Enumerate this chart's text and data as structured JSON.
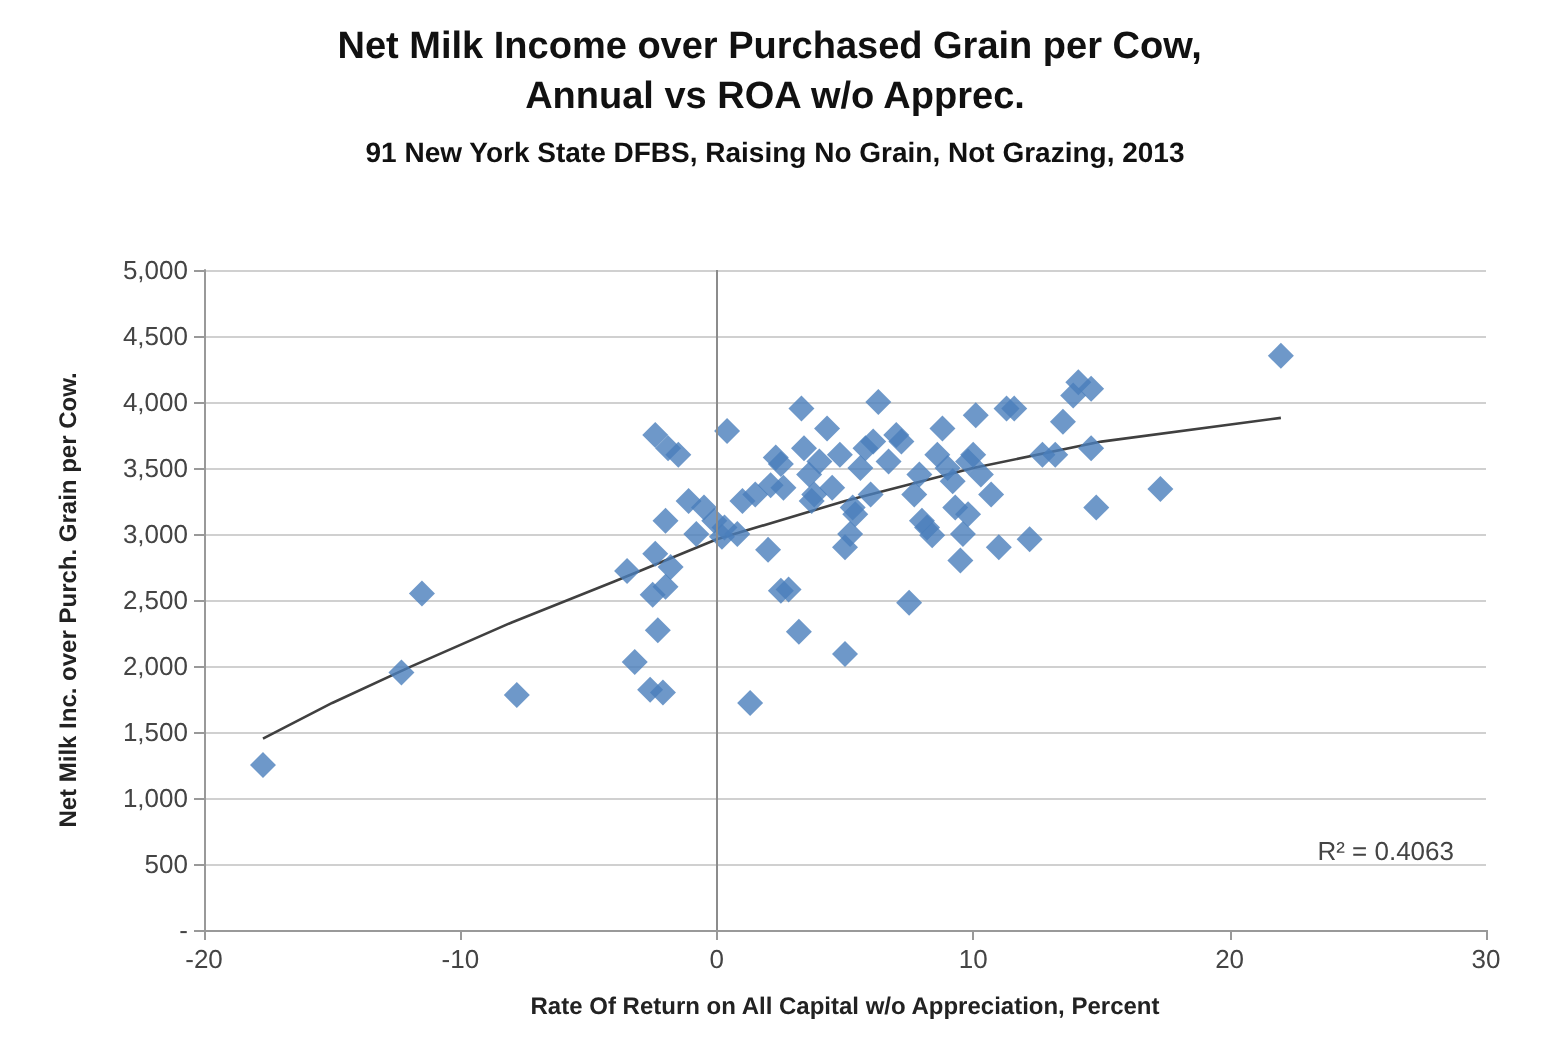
{
  "chart_data": {
    "type": "scatter",
    "title": "Net Milk Income over Purchased Grain per Cow, Annual vs ROA w/o Apprec.",
    "subtitle": "91 New York State DFBS, Raising No Grain, Not Grazing, 2013",
    "xlabel": "Rate Of Return on All Capital w/o Appreciation, Percent",
    "ylabel": "Net Milk Inc. over Purch. Grain per Cow.",
    "series": [
      {
        "type": "scatter",
        "color": "#4a7ebb",
        "marker": "diamond",
        "x": [
          -17.7,
          -12.3,
          -11.5,
          -7.8,
          -3.5,
          -3.2,
          -2.6,
          -2.1,
          -2.3,
          -2.5,
          -2.0,
          -2.4,
          -1.8,
          -2.0,
          -2.4,
          -1.9,
          -1.5,
          -1.1,
          -0.5,
          -0.1,
          0.2,
          0.3,
          0.4,
          0.8,
          1.3,
          1.5,
          2.0,
          2.1,
          2.5,
          2.3,
          2.5,
          2.8,
          3.2,
          3.3,
          3.4,
          3.6,
          3.8,
          4.0,
          4.3,
          4.5,
          4.8,
          5.0,
          5.0,
          5.2,
          5.4,
          5.6,
          5.8,
          6.0,
          6.3,
          7.2,
          7.5,
          7.7,
          7.9,
          8.0,
          8.2,
          8.4,
          8.6,
          8.8,
          9.0,
          9.2,
          9.3,
          9.5,
          9.6,
          9.8,
          10.0,
          10.1,
          10.3,
          10.7,
          11.0,
          11.3,
          11.6,
          12.2,
          12.7,
          13.2,
          13.5,
          13.9,
          14.1,
          14.6,
          14.6,
          14.8,
          17.3,
          22.0,
          7.0,
          6.7,
          9.8,
          2.6,
          1.0,
          -0.8,
          3.7,
          5.3,
          6.1
        ],
        "values": [
          1250,
          1950,
          2550,
          1780,
          2720,
          2030,
          1820,
          1800,
          2270,
          2540,
          2600,
          2850,
          2750,
          3100,
          3750,
          3650,
          3600,
          3250,
          3200,
          3100,
          2980,
          3050,
          3780,
          3000,
          1720,
          3300,
          2880,
          3370,
          3530,
          3580,
          2570,
          2580,
          2260,
          3950,
          3650,
          3450,
          3300,
          3550,
          3800,
          3350,
          3600,
          2090,
          2900,
          3000,
          3150,
          3500,
          3650,
          3300,
          4000,
          3700,
          2480,
          3300,
          3450,
          3100,
          3050,
          2990,
          3600,
          3800,
          3500,
          3400,
          3200,
          2800,
          3000,
          3550,
          3600,
          3900,
          3450,
          3300,
          2900,
          3950,
          3950,
          2960,
          3600,
          3600,
          3850,
          4050,
          4150,
          4100,
          3650,
          3200,
          3340,
          4350,
          3750,
          3550,
          3150,
          3350,
          3250,
          3000,
          3250,
          3200,
          3700
        ]
      },
      {
        "type": "line",
        "color": "#404040",
        "marker": "none",
        "line_style": "solid",
        "x": [
          -17.7,
          -15,
          -12,
          -8,
          -4,
          0,
          5,
          10,
          15,
          22
        ],
        "values": [
          1450,
          1720,
          1990,
          2330,
          2640,
          2960,
          3250,
          3500,
          3700,
          3880
        ]
      }
    ],
    "xlim": [
      -20,
      30
    ],
    "xticks": [
      -20,
      -10,
      0,
      10,
      20,
      30
    ],
    "ylim": [
      0,
      5000
    ],
    "yticks": [
      {
        "value": 0,
        "label": "-"
      },
      {
        "value": 500,
        "label": "500"
      },
      {
        "value": 1000,
        "label": "1,000"
      },
      {
        "value": 1500,
        "label": "1,500"
      },
      {
        "value": 2000,
        "label": "2,000"
      },
      {
        "value": 2500,
        "label": "2,500"
      },
      {
        "value": 3000,
        "label": "3,000"
      },
      {
        "value": 3500,
        "label": "3,500"
      },
      {
        "value": 4000,
        "label": "4,000"
      },
      {
        "value": 4500,
        "label": "4,500"
      },
      {
        "value": 5000,
        "label": "5,000"
      }
    ],
    "grid": "y",
    "ref_lines": [
      {
        "axis": "x",
        "value": 0,
        "color": "#8c8c8c"
      }
    ],
    "annotations": [
      "R² = 0.4063"
    ]
  }
}
